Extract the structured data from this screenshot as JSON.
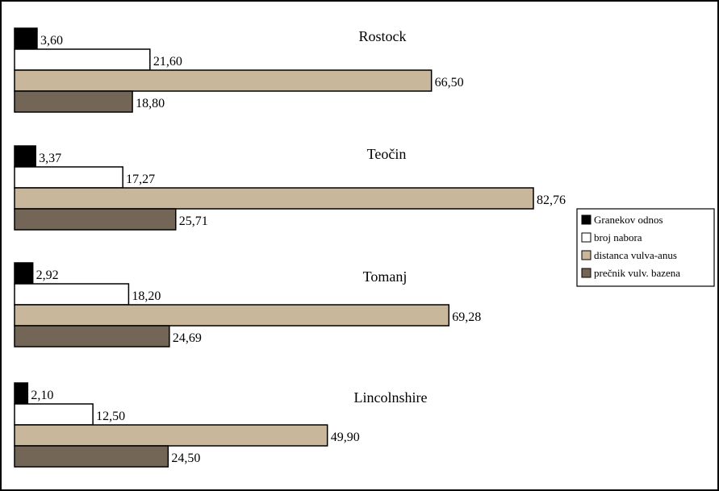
{
  "chart_data": {
    "type": "bar",
    "orientation": "horizontal",
    "categories": [
      "Rostock",
      "Teočin",
      "Tomanj",
      "Lincolnshire"
    ],
    "series": [
      {
        "name": "Granekov odnos",
        "color": "#000000",
        "values": [
          3.6,
          3.37,
          2.92,
          2.1
        ]
      },
      {
        "name": "broj nabora",
        "color": "#ffffff",
        "values": [
          21.6,
          17.27,
          18.2,
          12.5
        ]
      },
      {
        "name": "distanca vulva-anus",
        "color": "#c8b79a",
        "values": [
          66.5,
          82.76,
          69.28,
          49.9
        ]
      },
      {
        "name": "prečnik vulv. bazena",
        "color": "#746656",
        "values": [
          18.8,
          25.71,
          24.69,
          24.5
        ]
      }
    ],
    "value_labels": [
      [
        "3,60",
        "21,60",
        "66,50",
        "18,80"
      ],
      [
        "3,37",
        "17,27",
        "82,76",
        "25,71"
      ],
      [
        "2,92",
        "18,20",
        "69,28",
        "24,69"
      ],
      [
        "2,10",
        "12,50",
        "49,90",
        "24,50"
      ]
    ],
    "xlim": [
      0,
      82.76
    ],
    "legend_position": "right",
    "grid": false,
    "axes_visible": false
  }
}
